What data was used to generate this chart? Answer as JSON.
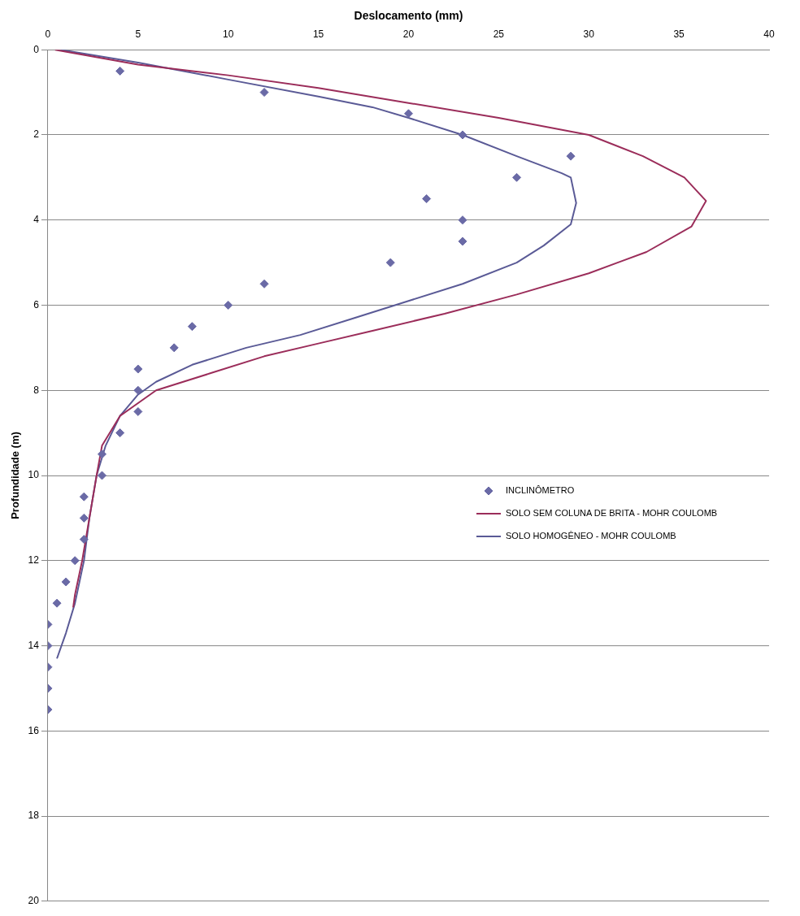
{
  "chart_data": {
    "type": "scatter",
    "xlabel": "Deslocamento (mm)",
    "ylabel": "Profundidade (m)",
    "xlim": [
      0,
      40
    ],
    "xticks": [
      0,
      5,
      10,
      15,
      20,
      25,
      30,
      35,
      40
    ],
    "ylim": [
      20,
      0
    ],
    "yticks": [
      0,
      2,
      4,
      6,
      8,
      10,
      12,
      14,
      16,
      18,
      20
    ],
    "grid": "y",
    "legend": "right",
    "series": [
      {
        "name": "INCLINÔMETRO",
        "type": "scatter",
        "marker": "diamond",
        "color": "#6a6aa6",
        "x": [
          4,
          12,
          20,
          23,
          29,
          26,
          21,
          23,
          23,
          19,
          12,
          10,
          8,
          7,
          5,
          5,
          5,
          4,
          3,
          3,
          2,
          2,
          2,
          1.5,
          1,
          0.5,
          0,
          0,
          0,
          0,
          0
        ],
        "values": [
          0.5,
          1,
          1.5,
          2,
          2.5,
          3,
          3.5,
          4,
          4.5,
          5,
          5.5,
          6,
          6.5,
          7,
          7.5,
          8,
          8.5,
          9,
          9.5,
          10,
          10.5,
          11,
          11.5,
          12,
          12.5,
          13,
          13.5,
          14,
          14.5,
          15,
          15.5
        ]
      },
      {
        "name": "SOLO SEM COLUNA DE BRITA - MOHR COULOMB",
        "type": "line",
        "marker": "none",
        "color": "#9b2d5a",
        "x": [
          0.4,
          5,
          10,
          15,
          20,
          25,
          30,
          33,
          35.3,
          36.5,
          35.7,
          33.2,
          30,
          26,
          22,
          18,
          15,
          12,
          9,
          6,
          4,
          3,
          2.7,
          2.3,
          1.9,
          1.5,
          1.4
        ],
        "values": [
          0,
          0.35,
          0.6,
          0.9,
          1.25,
          1.6,
          2,
          2.5,
          3,
          3.55,
          4.15,
          4.75,
          5.25,
          5.75,
          6.2,
          6.6,
          6.9,
          7.2,
          7.6,
          8,
          8.6,
          9.3,
          10,
          11,
          12,
          12.8,
          13.1
        ]
      },
      {
        "name": "SOLO HOMOGÊNEO - MOHR COULOMB",
        "type": "line",
        "marker": "none",
        "color": "#5a5a96",
        "x": [
          0.7,
          5,
          10,
          15,
          18,
          20,
          23,
          26,
          28.5,
          29,
          29.3,
          29,
          27.5,
          26,
          23,
          20,
          17,
          14,
          11,
          8,
          6,
          5,
          4,
          3.2,
          2.7,
          2.3,
          2,
          1.5,
          1,
          0.5
        ],
        "values": [
          0,
          0.3,
          0.7,
          1.1,
          1.35,
          1.6,
          2,
          2.5,
          2.9,
          3,
          3.6,
          4.1,
          4.6,
          5,
          5.5,
          5.9,
          6.3,
          6.7,
          7,
          7.4,
          7.8,
          8.1,
          8.6,
          9.3,
          10,
          11,
          12,
          13,
          13.7,
          14.3
        ]
      }
    ]
  }
}
